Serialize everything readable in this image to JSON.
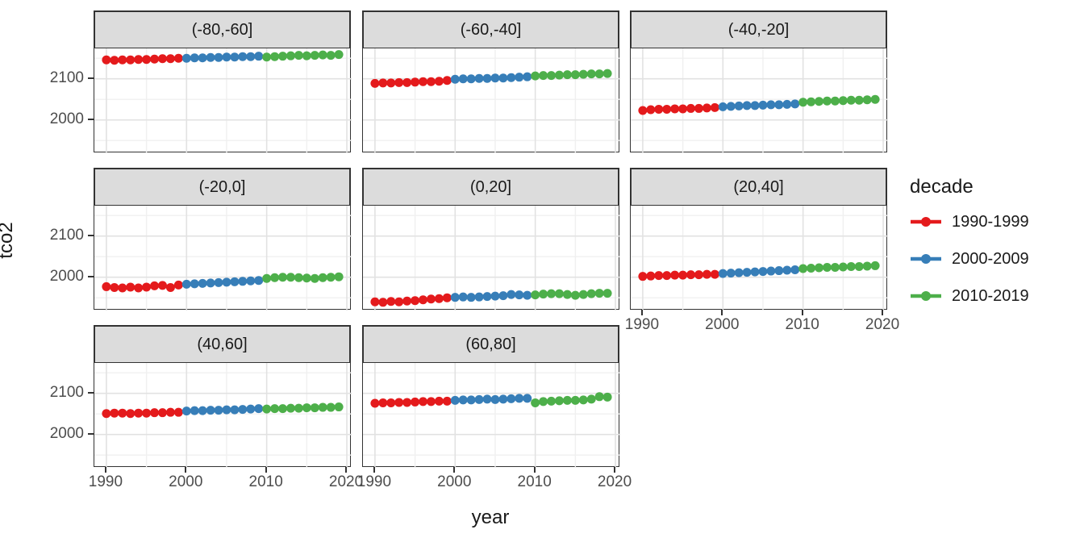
{
  "chart_data": {
    "type": "scatter",
    "title": "",
    "xlabel": "year",
    "ylabel": "tco2",
    "x_ticks": [
      1990,
      2000,
      2010,
      2020
    ],
    "x_minor_ticks": [
      1995,
      2005,
      2015
    ],
    "y_ticks": [
      2000,
      2100
    ],
    "y_minor_ticks": [
      1950,
      2050,
      2150
    ],
    "x_domain": [
      1988.5,
      2020.6
    ],
    "y_domain": [
      1919,
      2174
    ],
    "x_start_year": 1990,
    "grid": "on",
    "legend_position": "right",
    "legend": {
      "title": "decade",
      "entries": [
        {
          "label": "1990-1999",
          "color": "#E41A1C"
        },
        {
          "label": "2000-2009",
          "color": "#377EB8"
        },
        {
          "label": "2010-2019",
          "color": "#4DAF4A"
        }
      ]
    },
    "facets": [
      {
        "label": "(-80,-60]",
        "values": [
          2146,
          2145,
          2146,
          2146,
          2147,
          2147,
          2148,
          2149,
          2149,
          2150,
          2150,
          2151,
          2151,
          2152,
          2152,
          2153,
          2153,
          2154,
          2154,
          2155,
          2153,
          2154,
          2155,
          2156,
          2157,
          2156,
          2157,
          2158,
          2157,
          2159
        ]
      },
      {
        "label": "(-60,-40]",
        "values": [
          2089,
          2090,
          2090,
          2091,
          2091,
          2092,
          2093,
          2093,
          2094,
          2096,
          2099,
          2100,
          2100,
          2101,
          2101,
          2102,
          2102,
          2103,
          2104,
          2105,
          2107,
          2108,
          2108,
          2109,
          2110,
          2110,
          2111,
          2112,
          2112,
          2113
        ]
      },
      {
        "label": "(-40,-20]",
        "values": [
          2023,
          2025,
          2026,
          2026,
          2027,
          2027,
          2028,
          2028,
          2029,
          2030,
          2032,
          2033,
          2034,
          2035,
          2035,
          2036,
          2037,
          2037,
          2038,
          2039,
          2043,
          2044,
          2045,
          2046,
          2046,
          2047,
          2048,
          2048,
          2049,
          2050
        ]
      },
      {
        "label": "(-20,0]",
        "values": [
          1977,
          1975,
          1974,
          1976,
          1974,
          1976,
          1979,
          1980,
          1975,
          1981,
          1983,
          1984,
          1985,
          1986,
          1987,
          1988,
          1989,
          1990,
          1991,
          1992,
          1997,
          1999,
          2000,
          2000,
          1999,
          1998,
          1997,
          1999,
          2000,
          2001
        ]
      },
      {
        "label": "(0,20]",
        "values": [
          1940,
          1939,
          1941,
          1940,
          1942,
          1943,
          1945,
          1947,
          1948,
          1950,
          1951,
          1952,
          1951,
          1952,
          1953,
          1954,
          1955,
          1958,
          1957,
          1956,
          1957,
          1959,
          1960,
          1960,
          1958,
          1956,
          1958,
          1960,
          1961,
          1961
        ]
      },
      {
        "label": "(20,40]",
        "values": [
          2002,
          2003,
          2004,
          2004,
          2005,
          2005,
          2006,
          2006,
          2007,
          2007,
          2009,
          2010,
          2011,
          2012,
          2013,
          2014,
          2015,
          2016,
          2017,
          2018,
          2021,
          2022,
          2023,
          2024,
          2024,
          2025,
          2026,
          2026,
          2027,
          2028
        ]
      },
      {
        "label": "(40,60]",
        "values": [
          2051,
          2052,
          2052,
          2051,
          2052,
          2052,
          2053,
          2053,
          2054,
          2054,
          2057,
          2058,
          2058,
          2059,
          2059,
          2060,
          2060,
          2061,
          2062,
          2063,
          2062,
          2063,
          2063,
          2064,
          2064,
          2065,
          2065,
          2066,
          2066,
          2067
        ]
      },
      {
        "label": "(60,80]",
        "values": [
          2076,
          2077,
          2077,
          2078,
          2078,
          2079,
          2080,
          2080,
          2081,
          2081,
          2083,
          2084,
          2084,
          2085,
          2086,
          2085,
          2086,
          2087,
          2088,
          2088,
          2077,
          2080,
          2081,
          2082,
          2083,
          2083,
          2084,
          2086,
          2092,
          2091
        ]
      }
    ]
  }
}
